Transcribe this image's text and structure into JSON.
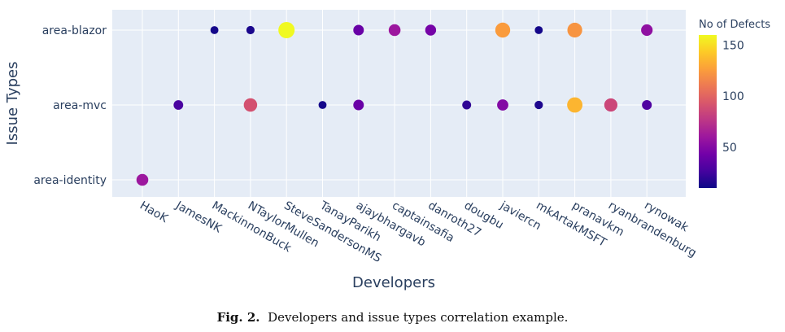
{
  "chart_data": {
    "type": "scatter",
    "xlabel": "Developers",
    "ylabel": "Issue Types",
    "categories_x": [
      "HaoK",
      "JamesNK",
      "MackinnonBuck",
      "NTaylorMullen",
      "SteveSandersonMS",
      "TanayParikh",
      "ajaybhargavb",
      "captainsafia",
      "danroth27",
      "dougbu",
      "javiercn",
      "mkArtakMSFT",
      "pranavkm",
      "ryanbrandenburg",
      "rynowak"
    ],
    "categories_y": [
      "area-blazor",
      "area-mvc",
      "area-identity"
    ],
    "colorbar": {
      "title": "No of Defects",
      "min": 10,
      "max": 160,
      "ticks": [
        50,
        100,
        150
      ]
    },
    "points": [
      {
        "x": "MackinnonBuck",
        "y": "area-blazor",
        "value": 12
      },
      {
        "x": "NTaylorMullen",
        "y": "area-blazor",
        "value": 14
      },
      {
        "x": "SteveSandersonMS",
        "y": "area-blazor",
        "value": 160
      },
      {
        "x": "ajaybhargavb",
        "y": "area-blazor",
        "value": 40
      },
      {
        "x": "captainsafia",
        "y": "area-blazor",
        "value": 60
      },
      {
        "x": "danroth27",
        "y": "area-blazor",
        "value": 45
      },
      {
        "x": "javiercn",
        "y": "area-blazor",
        "value": 125
      },
      {
        "x": "mkArtakMSFT",
        "y": "area-blazor",
        "value": 12
      },
      {
        "x": "pranavkm",
        "y": "area-blazor",
        "value": 122
      },
      {
        "x": "rynowak",
        "y": "area-blazor",
        "value": 55
      },
      {
        "x": "JamesNK",
        "y": "area-mvc",
        "value": 28
      },
      {
        "x": "NTaylorMullen",
        "y": "area-mvc",
        "value": 90
      },
      {
        "x": "TanayParikh",
        "y": "area-mvc",
        "value": 12
      },
      {
        "x": "ajaybhargavb",
        "y": "area-mvc",
        "value": 40
      },
      {
        "x": "dougbu",
        "y": "area-mvc",
        "value": 20
      },
      {
        "x": "javiercn",
        "y": "area-mvc",
        "value": 50
      },
      {
        "x": "mkArtakMSFT",
        "y": "area-mvc",
        "value": 15
      },
      {
        "x": "pranavkm",
        "y": "area-mvc",
        "value": 135
      },
      {
        "x": "ryanbrandenburg",
        "y": "area-mvc",
        "value": 85
      },
      {
        "x": "rynowak",
        "y": "area-mvc",
        "value": 30
      },
      {
        "x": "HaoK",
        "y": "area-identity",
        "value": 60
      }
    ]
  },
  "caption": {
    "label": "Fig. 2.",
    "text": "Developers and issue types correlation example."
  }
}
